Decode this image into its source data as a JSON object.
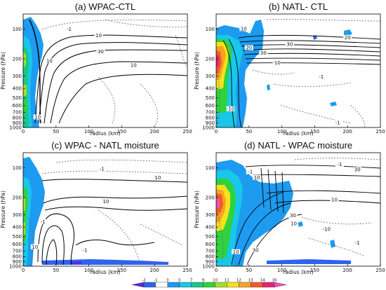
{
  "figure": {
    "colorbar_levels": [
      "-2",
      "-1",
      "3",
      "5",
      "7",
      "9",
      "10",
      "11",
      "12",
      "13",
      "14",
      "16"
    ],
    "colorbar_colors": [
      "#5a2bd6",
      "#2e63f0",
      "#ffffff",
      "#1d9bf0",
      "#19c7e8",
      "#15c98a",
      "#2fd23c",
      "#a8dc28",
      "#f4e21c",
      "#f7a21e",
      "#f15a2a",
      "#e8236f",
      "#f052b8"
    ]
  },
  "chart_data": [
    {
      "type": "contour",
      "title": "(a) WPAC-CTL",
      "xlabel": "radius (km)",
      "ylabel": "Pressure (hPa)",
      "xlim": [
        0,
        250
      ],
      "ylim": [
        1000,
        70
      ],
      "yscale": "log",
      "xticks": [
        "0",
        "50",
        "100",
        "150",
        "200",
        "250"
      ],
      "yticks": [
        "100",
        "200",
        "300",
        "400",
        "500",
        "600",
        "700",
        "800",
        "900",
        "1000"
      ],
      "contour_labels": [
        {
          "text": "-1",
          "r": 70,
          "p": 102
        },
        {
          "text": "10",
          "r": 115,
          "p": 118
        },
        {
          "text": "30",
          "r": 118,
          "p": 172
        },
        {
          "text": "10",
          "r": 40,
          "p": 215
        },
        {
          "text": "10",
          "r": 168,
          "p": 238
        },
        {
          "text": "10",
          "r": 22,
          "p": 800
        }
      ]
    },
    {
      "type": "contour",
      "title": "(b) NATL- CTL",
      "xlabel": "radius (km)",
      "ylabel": "Pressure (hPa)",
      "xlim": [
        0,
        250
      ],
      "ylim": [
        1000,
        70
      ],
      "yscale": "log",
      "xticks": [
        "0",
        "50",
        "100",
        "150",
        "200",
        "250"
      ],
      "yticks": [
        "100",
        "200",
        "300",
        "400",
        "500",
        "600",
        "700",
        "800",
        "900",
        "1000"
      ],
      "contour_labels": [
        {
          "text": "10",
          "r": 42,
          "p": 101
        },
        {
          "text": "20",
          "r": 200,
          "p": 124
        },
        {
          "text": "20",
          "r": 50,
          "p": 158
        },
        {
          "text": "30",
          "r": 72,
          "p": 178
        },
        {
          "text": "30",
          "r": 112,
          "p": 145
        },
        {
          "text": "-10",
          "r": 92,
          "p": 224
        },
        {
          "text": "-1",
          "r": 160,
          "p": 312
        },
        {
          "text": "-10",
          "r": 22,
          "p": 660
        },
        {
          "text": "-1",
          "r": 185,
          "p": 910
        }
      ]
    },
    {
      "type": "contour",
      "title": "(c) WPAC - NATL moisture",
      "xlabel": "radius (km)",
      "ylabel": "Pressure (hPa)",
      "xlim": [
        0,
        250
      ],
      "ylim": [
        1000,
        70
      ],
      "yscale": "log",
      "xticks": [
        "0",
        "50",
        "100",
        "150",
        "200",
        "250"
      ],
      "yticks": [
        "100",
        "200",
        "300",
        "400",
        "500",
        "600",
        "700",
        "800",
        "900",
        "1000"
      ],
      "contour_labels": [
        {
          "text": "-1",
          "r": 120,
          "p": 105
        },
        {
          "text": "10",
          "r": 205,
          "p": 128
        },
        {
          "text": "10",
          "r": 126,
          "p": 224
        },
        {
          "text": "-1",
          "r": 30,
          "p": 360
        },
        {
          "text": "10",
          "r": 18,
          "p": 650
        },
        {
          "text": "-1",
          "r": 94,
          "p": 700
        }
      ]
    },
    {
      "type": "contour",
      "title": "(d) NATL - WPAC moisture",
      "xlabel": "radius (km)",
      "ylabel": "Pressure (hPa)",
      "xlim": [
        0,
        250
      ],
      "ylim": [
        1000,
        70
      ],
      "yscale": "log",
      "xticks": [
        "0",
        "50",
        "100",
        "150",
        "200",
        "250"
      ],
      "yticks": [
        "100",
        "200",
        "300",
        "400",
        "500",
        "600",
        "700",
        "800",
        "900",
        "1000"
      ],
      "contour_labels": [
        {
          "text": "-1",
          "r": 188,
          "p": 94
        },
        {
          "text": "30",
          "r": 215,
          "p": 106
        },
        {
          "text": "10",
          "r": 62,
          "p": 128
        },
        {
          "text": "-1",
          "r": 52,
          "p": 112
        },
        {
          "text": "10",
          "r": 180,
          "p": 215
        },
        {
          "text": "30",
          "r": 117,
          "p": 312
        },
        {
          "text": "10",
          "r": 118,
          "p": 378
        },
        {
          "text": "-10",
          "r": 168,
          "p": 430
        },
        {
          "text": "30",
          "r": 60,
          "p": 700
        },
        {
          "text": "10",
          "r": 30,
          "p": 730
        },
        {
          "text": "-1",
          "r": 215,
          "p": 590
        }
      ]
    }
  ]
}
